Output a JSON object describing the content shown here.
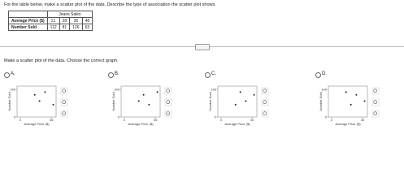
{
  "question": "For the table below, make a scatter plot of the data. Describe the type of association the scatter plot shows.",
  "table": {
    "title": "Jeans Sales",
    "rows": [
      [
        "Average Price ($)",
        "21",
        "28",
        "36",
        "48"
      ],
      [
        "Number Sold",
        "112",
        "81",
        "126",
        "63"
      ]
    ]
  },
  "prompt": "Make a scatter plot of the data. Choose the correct graph.",
  "options": [
    {
      "label": "A.",
      "xlabel": "Average Price ($)",
      "ylabel": "Number Sold",
      "xticks": [
        0,
        45
      ],
      "yticks": [
        0,
        140
      ],
      "points": [
        [
          21,
          112
        ],
        [
          28,
          81
        ],
        [
          36,
          126
        ],
        [
          48,
          63
        ]
      ]
    },
    {
      "label": "B.",
      "xlabel": "Average Price ($)",
      "ylabel": "Number Sold",
      "xticks": [
        0,
        45
      ],
      "yticks": [
        0,
        140
      ],
      "points": [
        [
          21,
          81
        ],
        [
          28,
          112
        ],
        [
          36,
          63
        ],
        [
          48,
          126
        ]
      ]
    },
    {
      "label": "C.",
      "xlabel": "Average Price ($)",
      "ylabel": "Number Sold",
      "xticks": [
        0,
        45
      ],
      "yticks": [
        0,
        140
      ],
      "points": [
        [
          21,
          63
        ],
        [
          28,
          126
        ],
        [
          36,
          81
        ],
        [
          48,
          112
        ]
      ]
    },
    {
      "label": "D.",
      "xlabel": "Average Price ($)",
      "ylabel": "Number Sold",
      "xticks": [
        0,
        45
      ],
      "yticks": [
        0,
        140
      ],
      "points": [
        [
          21,
          126
        ],
        [
          28,
          63
        ],
        [
          36,
          112
        ],
        [
          48,
          81
        ]
      ]
    }
  ]
}
